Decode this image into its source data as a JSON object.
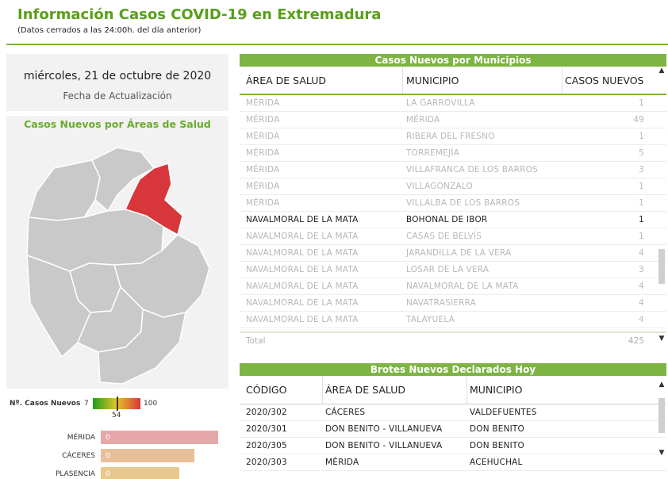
{
  "header": {
    "title": "Información Casos COVID-19 en Extremadura",
    "subtitle": "(Datos cerrados a las 24:00h. del día anterior)"
  },
  "update": {
    "date": "miércoles, 21 de octubre de 2020",
    "label": "Fecha de Actualización"
  },
  "map": {
    "title": "Casos Nuevos por Áreas de Salud",
    "highlight_color": "#d7373b",
    "base_color": "#c9c9c9"
  },
  "legend": {
    "label": "Nº. Casos Nuevos",
    "min": "7",
    "mid": "54",
    "max": "100",
    "marker_fraction": 0.505
  },
  "bars": [
    {
      "name": "MÉRIDA",
      "value": "0",
      "fraction": 1.0,
      "color": "#e6a7a9"
    },
    {
      "name": "CÁCERES",
      "value": "0",
      "fraction": 0.8,
      "color": "#e9bf9a"
    },
    {
      "name": "PLASENCIA",
      "value": "0",
      "fraction": 0.67,
      "color": "#e9c98f"
    }
  ],
  "municipios": {
    "title": "Casos Nuevos por Municipios",
    "columns": [
      "ÁREA DE SALUD",
      "MUNICIPIO",
      "CASOS NUEVOS"
    ],
    "rows": [
      {
        "area": "MÉRIDA",
        "municipio": "LA GARROVILLA",
        "casos": "1",
        "hl": false
      },
      {
        "area": "MÉRIDA",
        "municipio": "MÉRIDA",
        "casos": "49",
        "hl": false
      },
      {
        "area": "MÉRIDA",
        "municipio": "RIBERA DEL FRESNO",
        "casos": "1",
        "hl": false
      },
      {
        "area": "MÉRIDA",
        "municipio": "TORREMEJÍA",
        "casos": "5",
        "hl": false
      },
      {
        "area": "MÉRIDA",
        "municipio": "VILLAFRANCA DE LOS BARROS",
        "casos": "3",
        "hl": false
      },
      {
        "area": "MÉRIDA",
        "municipio": "VILLAGONZALO",
        "casos": "1",
        "hl": false
      },
      {
        "area": "MÉRIDA",
        "municipio": "VILLALBA DE LOS BARROS",
        "casos": "1",
        "hl": false
      },
      {
        "area": "NAVALMORAL DE LA MATA",
        "municipio": "BOHONAL DE IBOR",
        "casos": "1",
        "hl": true
      },
      {
        "area": "NAVALMORAL DE LA MATA",
        "municipio": "CASAS DE BELVÍS",
        "casos": "1",
        "hl": false
      },
      {
        "area": "NAVALMORAL DE LA MATA",
        "municipio": "JARANDILLA DE LA VERA",
        "casos": "4",
        "hl": false
      },
      {
        "area": "NAVALMORAL DE LA MATA",
        "municipio": "LOSAR DE LA VERA",
        "casos": "3",
        "hl": false
      },
      {
        "area": "NAVALMORAL DE LA MATA",
        "municipio": "NAVALMORAL DE LA MATA",
        "casos": "4",
        "hl": false
      },
      {
        "area": "NAVALMORAL DE LA MATA",
        "municipio": "NAVATRASIERRA",
        "casos": "4",
        "hl": false
      },
      {
        "area": "NAVALMORAL DE LA MATA",
        "municipio": "TALAYUELA",
        "casos": "4",
        "hl": false
      }
    ],
    "total_label": "Total",
    "total_value": "425"
  },
  "brotes": {
    "title": "Brotes Nuevos Declarados Hoy",
    "columns": [
      "CÓDIGO",
      "ÁREA DE SALUD",
      "MUNICIPIO"
    ],
    "rows": [
      {
        "codigo": "2020/302",
        "area": "CÁCERES",
        "municipio": "VALDEFUENTES"
      },
      {
        "codigo": "2020/301",
        "area": "DON BENITO - VILLANUEVA",
        "municipio": "DON BENITO"
      },
      {
        "codigo": "2020/305",
        "area": "DON BENITO - VILLANUEVA",
        "municipio": "DON BENITO"
      },
      {
        "codigo": "2020/303",
        "area": "MÉRIDA",
        "municipio": "ACEHUCHAL"
      }
    ]
  },
  "scroll": {
    "up": "▲",
    "down": "▼"
  }
}
